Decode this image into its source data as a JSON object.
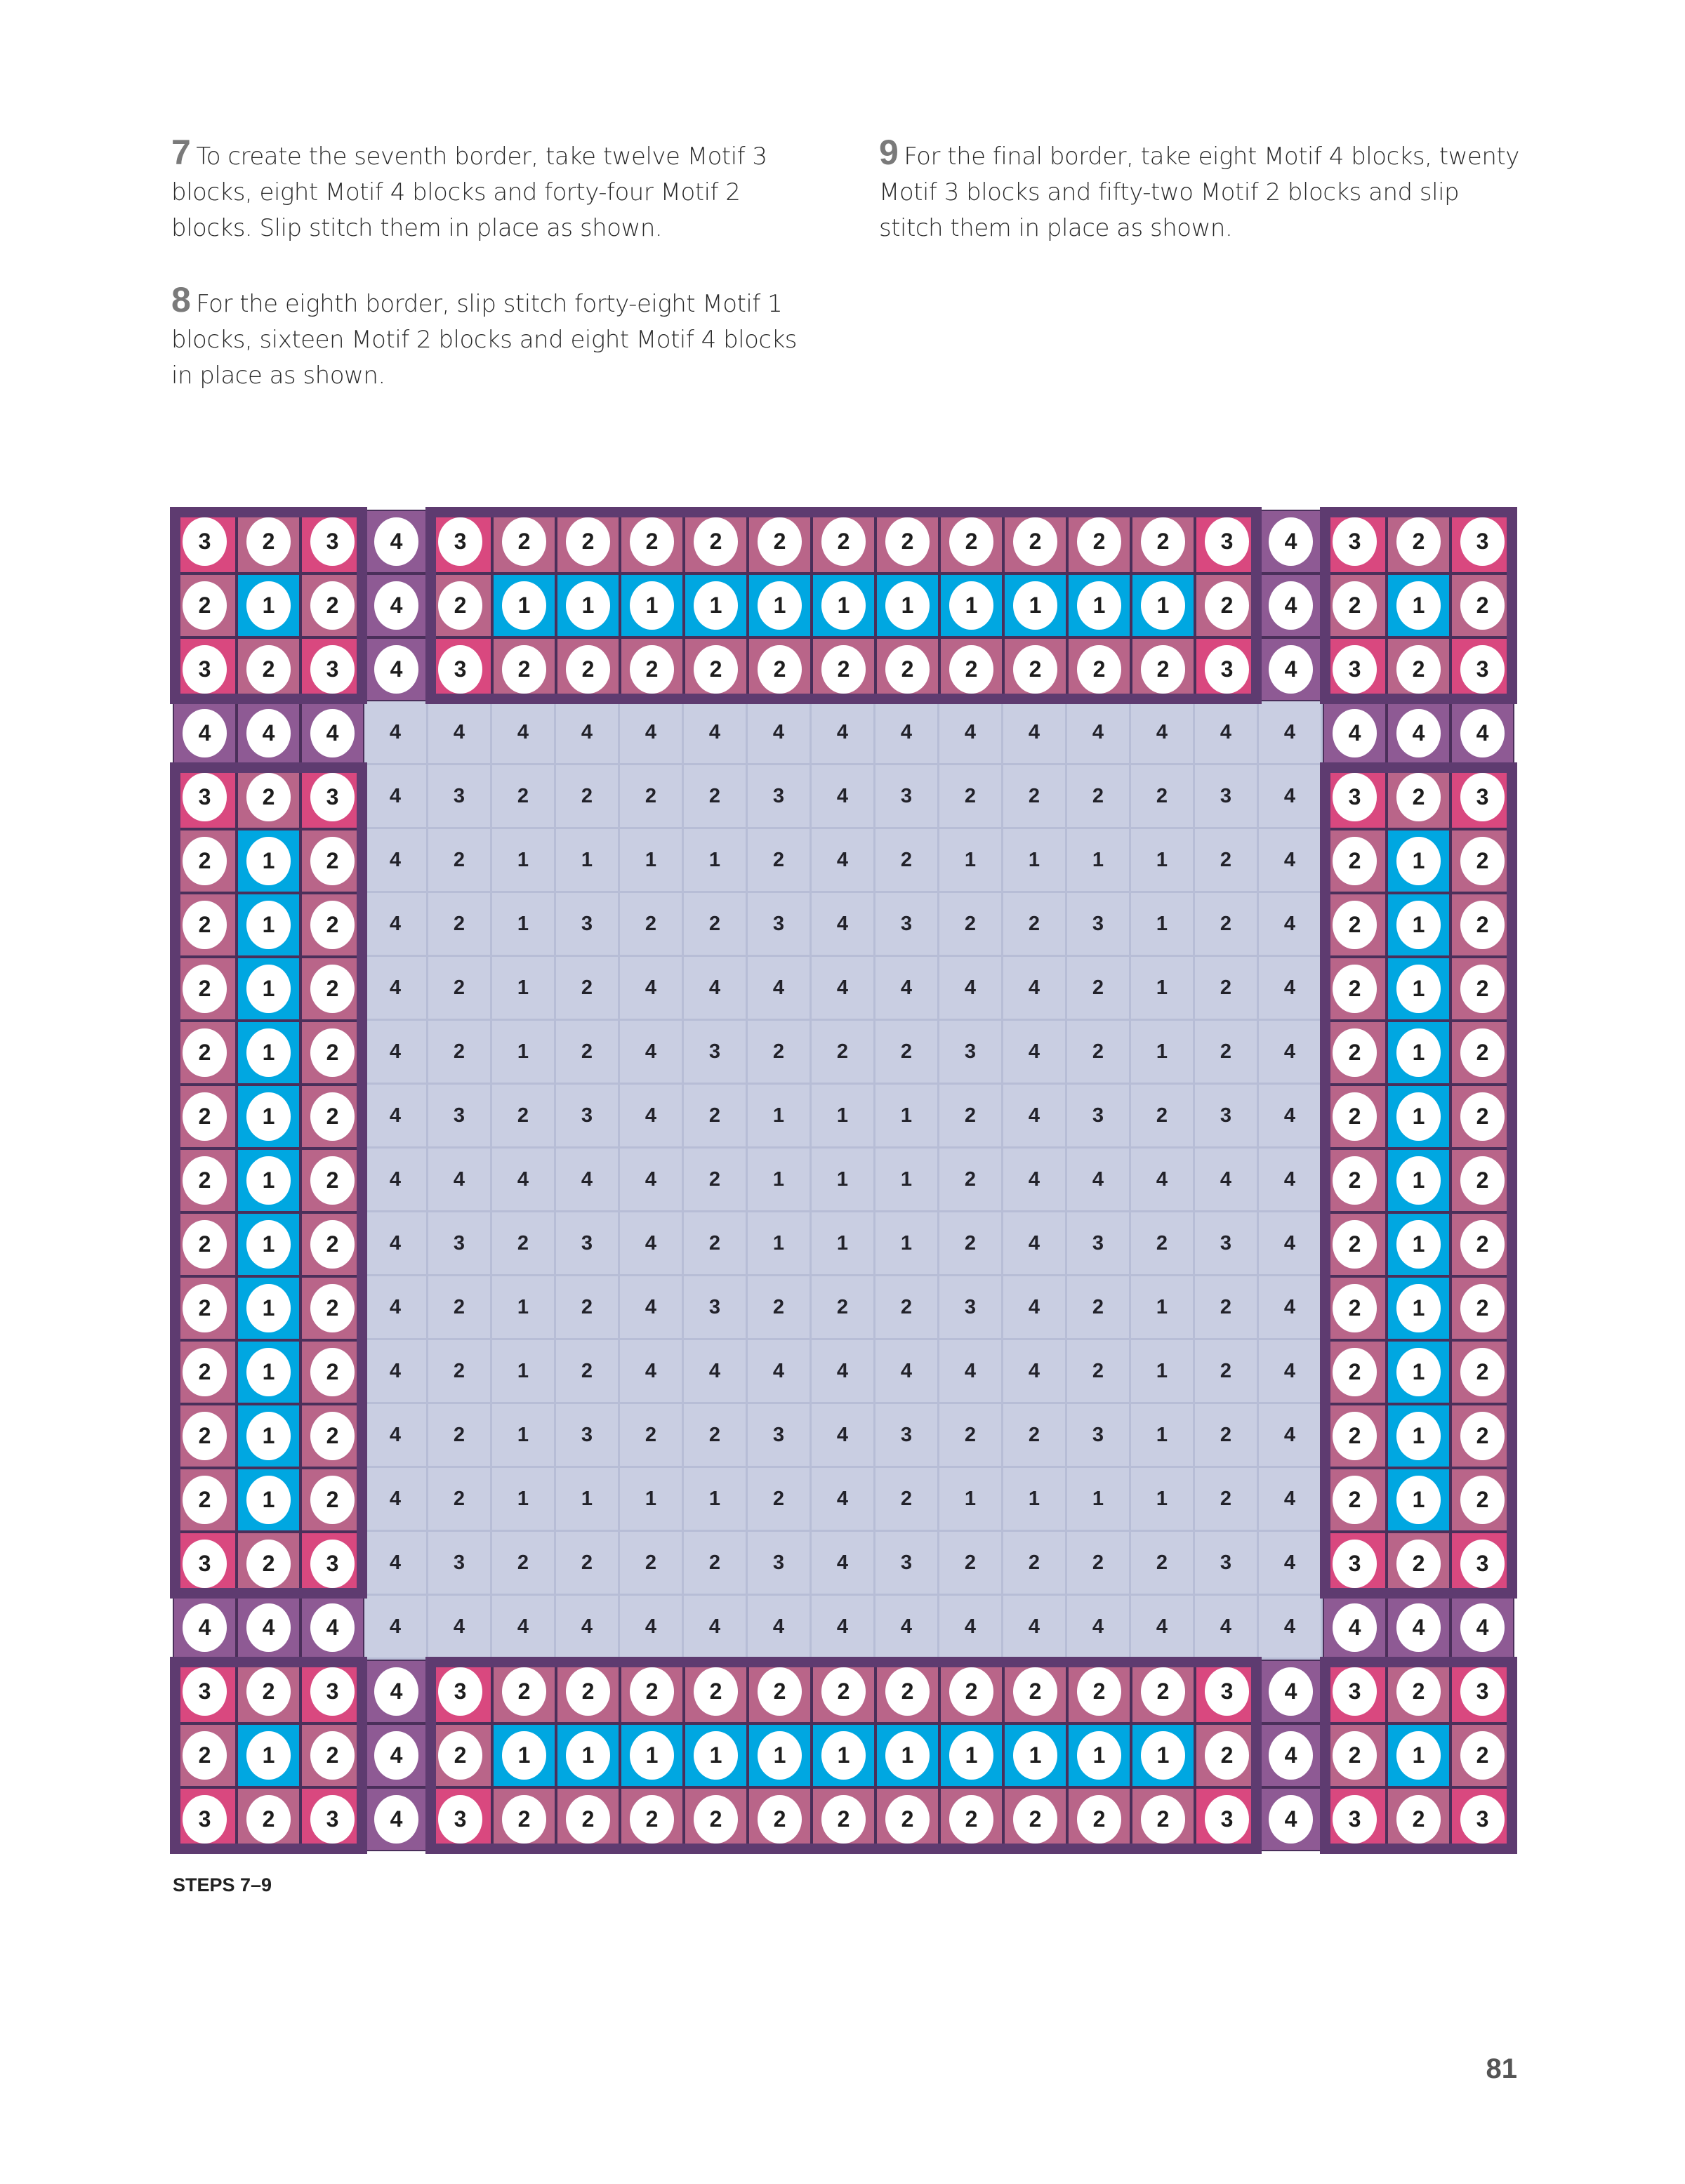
{
  "steps": [
    {
      "number": "7",
      "text": "To create the seventh border, take twelve Motif 3 blocks, eight Motif 4 blocks and forty-four Motif 2 blocks. Slip stitch them in place as shown."
    },
    {
      "number": "8",
      "text": "For the eighth border, slip stitch forty-eight Motif 1 blocks, sixteen Motif 2 blocks and eight Motif 4 blocks in place as shown."
    },
    {
      "number": "9",
      "text": "For the final border, take eight Motif 4 blocks, twenty Motif 3 blocks and fifty-two Motif 2 blocks and slip stitch them in place as shown."
    }
  ],
  "caption": "STEPS 7–9",
  "page_number": "81",
  "motif_colors": {
    "1": "#00a7e1",
    "2": "#b96589",
    "3": "#d9487f",
    "4": "#8e5a94"
  },
  "frame_color": "#5e3b70",
  "inner_color": "#c9cee2",
  "grid": [
    [
      3,
      2,
      3,
      4,
      3,
      2,
      2,
      2,
      2,
      2,
      2,
      2,
      2,
      2,
      2,
      2,
      3,
      4,
      3,
      2,
      3
    ],
    [
      2,
      1,
      2,
      4,
      2,
      1,
      1,
      1,
      1,
      1,
      1,
      1,
      1,
      1,
      1,
      1,
      2,
      4,
      2,
      1,
      2
    ],
    [
      3,
      2,
      3,
      4,
      3,
      2,
      2,
      2,
      2,
      2,
      2,
      2,
      2,
      2,
      2,
      2,
      3,
      4,
      3,
      2,
      3
    ],
    [
      4,
      4,
      4,
      4,
      4,
      4,
      4,
      4,
      4,
      4,
      4,
      4,
      4,
      4,
      4,
      4,
      4,
      4,
      4,
      4,
      4
    ],
    [
      3,
      2,
      3,
      4,
      3,
      2,
      2,
      2,
      2,
      3,
      4,
      3,
      2,
      2,
      2,
      2,
      3,
      4,
      3,
      2,
      3
    ],
    [
      2,
      1,
      2,
      4,
      2,
      1,
      1,
      1,
      1,
      2,
      4,
      2,
      1,
      1,
      1,
      1,
      2,
      4,
      2,
      1,
      2
    ],
    [
      2,
      1,
      2,
      4,
      2,
      1,
      3,
      2,
      2,
      3,
      4,
      3,
      2,
      2,
      3,
      1,
      2,
      4,
      2,
      1,
      2
    ],
    [
      2,
      1,
      2,
      4,
      2,
      1,
      2,
      4,
      4,
      4,
      4,
      4,
      4,
      4,
      2,
      1,
      2,
      4,
      2,
      1,
      2
    ],
    [
      2,
      1,
      2,
      4,
      2,
      1,
      2,
      4,
      3,
      2,
      2,
      2,
      3,
      4,
      2,
      1,
      2,
      4,
      2,
      1,
      2
    ],
    [
      2,
      1,
      2,
      4,
      3,
      2,
      3,
      4,
      2,
      1,
      1,
      1,
      2,
      4,
      3,
      2,
      3,
      4,
      2,
      1,
      2
    ],
    [
      2,
      1,
      2,
      4,
      4,
      4,
      4,
      4,
      2,
      1,
      1,
      1,
      2,
      4,
      4,
      4,
      4,
      4,
      2,
      1,
      2
    ],
    [
      2,
      1,
      2,
      4,
      3,
      2,
      3,
      4,
      2,
      1,
      1,
      1,
      2,
      4,
      3,
      2,
      3,
      4,
      2,
      1,
      2
    ],
    [
      2,
      1,
      2,
      4,
      2,
      1,
      2,
      4,
      3,
      2,
      2,
      2,
      3,
      4,
      2,
      1,
      2,
      4,
      2,
      1,
      2
    ],
    [
      2,
      1,
      2,
      4,
      2,
      1,
      2,
      4,
      4,
      4,
      4,
      4,
      4,
      4,
      2,
      1,
      2,
      4,
      2,
      1,
      2
    ],
    [
      2,
      1,
      2,
      4,
      2,
      1,
      3,
      2,
      2,
      3,
      4,
      3,
      2,
      2,
      3,
      1,
      2,
      4,
      2,
      1,
      2
    ],
    [
      2,
      1,
      2,
      4,
      2,
      1,
      1,
      1,
      1,
      2,
      4,
      2,
      1,
      1,
      1,
      1,
      2,
      4,
      2,
      1,
      2
    ],
    [
      3,
      2,
      3,
      4,
      3,
      2,
      2,
      2,
      2,
      3,
      4,
      3,
      2,
      2,
      2,
      2,
      3,
      4,
      3,
      2,
      3
    ],
    [
      4,
      4,
      4,
      4,
      4,
      4,
      4,
      4,
      4,
      4,
      4,
      4,
      4,
      4,
      4,
      4,
      4,
      4,
      4,
      4,
      4
    ],
    [
      3,
      2,
      3,
      4,
      3,
      2,
      2,
      2,
      2,
      2,
      2,
      2,
      2,
      2,
      2,
      2,
      3,
      4,
      3,
      2,
      3
    ],
    [
      2,
      1,
      2,
      4,
      2,
      1,
      1,
      1,
      1,
      1,
      1,
      1,
      1,
      1,
      1,
      1,
      2,
      4,
      2,
      1,
      2
    ],
    [
      3,
      2,
      3,
      4,
      3,
      2,
      2,
      2,
      2,
      2,
      2,
      2,
      2,
      2,
      2,
      2,
      3,
      4,
      3,
      2,
      3
    ]
  ]
}
